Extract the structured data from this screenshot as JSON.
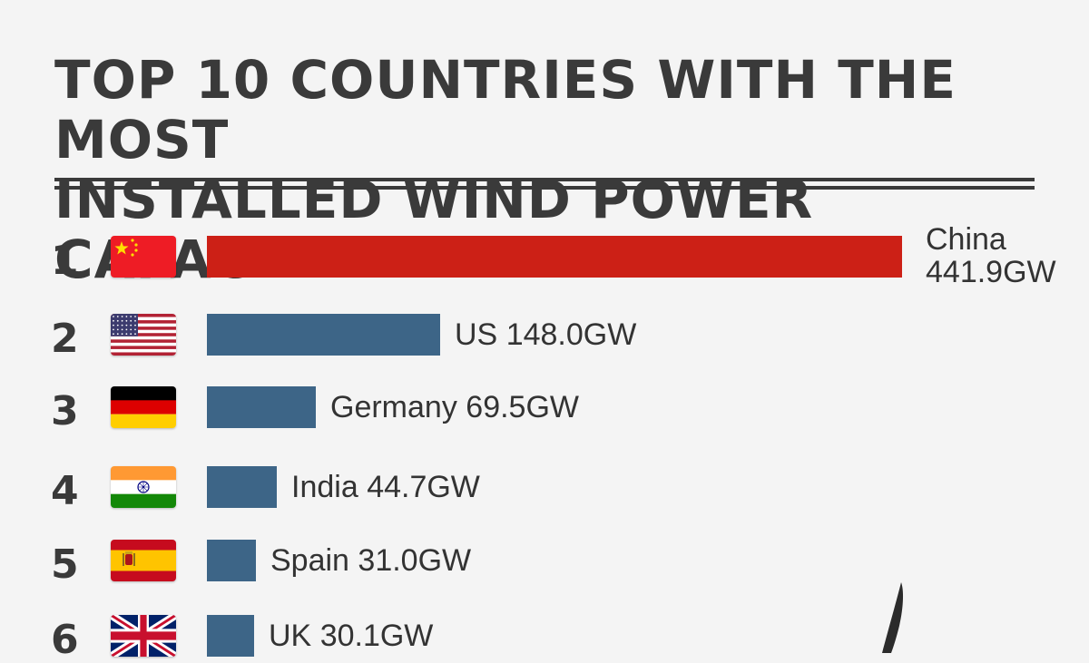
{
  "title_line1": "TOP 10 COUNTRIES WITH THE MOST",
  "title_line2": "INSTALLED WIND POWER CAPACITY",
  "colors": {
    "leader": "#cc2016",
    "bar": "#3d6587",
    "text": "#333333",
    "background": "#f4f4f4"
  },
  "chart_data": {
    "type": "bar",
    "orientation": "horizontal",
    "unit": "GW",
    "categories": [
      "China",
      "US",
      "Germany",
      "India",
      "Spain",
      "UK"
    ],
    "ranks": [
      "1",
      "2",
      "3",
      "4",
      "5",
      "6"
    ],
    "values": [
      441.9,
      148.0,
      69.5,
      44.7,
      31.0,
      30.1
    ],
    "value_labels": [
      "441.9GW",
      "148.0GW",
      "69.5GW",
      "44.7GW",
      "31.0GW",
      "30.1GW"
    ],
    "flags": [
      "china-flag",
      "us-flag",
      "germany-flag",
      "india-flag",
      "spain-flag",
      "uk-flag"
    ]
  }
}
